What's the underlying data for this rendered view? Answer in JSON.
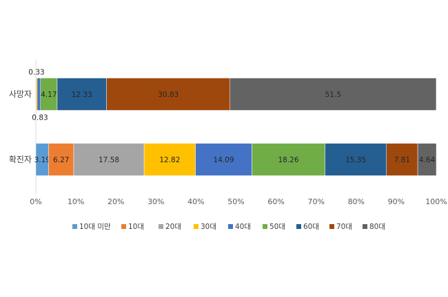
{
  "chart_data": {
    "type": "bar",
    "orientation": "horizontal",
    "stacked": "percent",
    "categories": [
      "사망자",
      "확진자"
    ],
    "x_ticks": [
      "0%",
      "10%",
      "20%",
      "30%",
      "40%",
      "50%",
      "60%",
      "70%",
      "80%",
      "90%",
      "100%"
    ],
    "xlim": [
      0,
      100
    ],
    "grid": false,
    "legend_position": "bottom",
    "series": [
      {
        "name": "10대 미만",
        "color": "#5B9BD5",
        "values": [
          0,
          3.19
        ],
        "labels": [
          "",
          "3.19"
        ]
      },
      {
        "name": "10대",
        "color": "#ED7D31",
        "values": [
          0,
          6.27
        ],
        "labels": [
          "",
          "6.27"
        ]
      },
      {
        "name": "20대",
        "color": "#A5A5A5",
        "values": [
          0,
          17.58
        ],
        "labels": [
          "",
          "17.58"
        ]
      },
      {
        "name": "30대",
        "color": "#FFC000",
        "values": [
          0.33,
          12.82
        ],
        "labels": [
          "0.33",
          "12.82"
        ]
      },
      {
        "name": "40대",
        "color": "#4472C4",
        "values": [
          0.83,
          14.09
        ],
        "labels": [
          "0.83",
          "14.09"
        ]
      },
      {
        "name": "50대",
        "color": "#70AD47",
        "values": [
          4.17,
          18.26
        ],
        "labels": [
          "4.17",
          "18.26"
        ]
      },
      {
        "name": "60대",
        "color": "#255E91",
        "values": [
          12.33,
          15.35
        ],
        "labels": [
          "12.33",
          "15.35"
        ]
      },
      {
        "name": "70대",
        "color": "#9E480E",
        "values": [
          30.83,
          7.81
        ],
        "labels": [
          "30.83",
          "7.81"
        ]
      },
      {
        "name": "80대",
        "color": "#636363",
        "values": [
          51.5,
          4.64
        ],
        "labels": [
          "51.5",
          "4.64"
        ]
      }
    ]
  }
}
